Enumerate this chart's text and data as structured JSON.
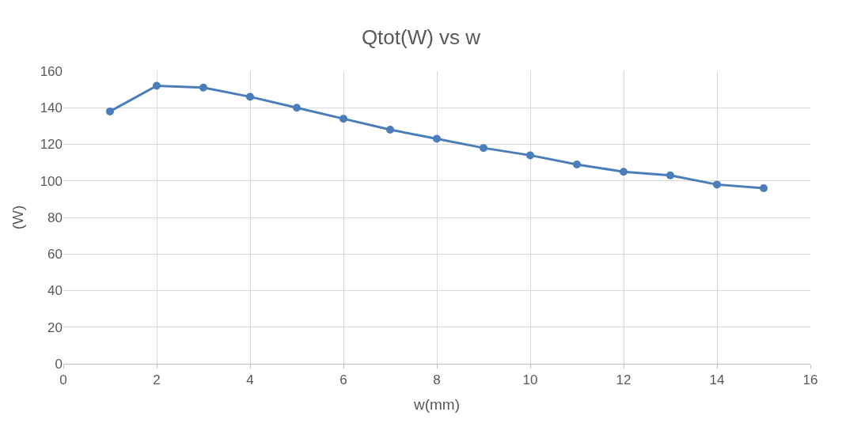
{
  "chart_data": {
    "type": "line",
    "title": "Qtot(W) vs w",
    "xlabel": "w(mm)",
    "ylabel": "(W)",
    "x": [
      1,
      2,
      3,
      4,
      5,
      6,
      7,
      8,
      9,
      10,
      11,
      12,
      13,
      14,
      15
    ],
    "series": [
      {
        "color": "#4a7ebb",
        "values": [
          138,
          152,
          151,
          146,
          140,
          134,
          128,
          123,
          118,
          114,
          109,
          105,
          103,
          98,
          96
        ]
      }
    ],
    "xlim": [
      0,
      16
    ],
    "xticks": [
      0,
      2,
      4,
      6,
      8,
      10,
      12,
      14,
      16
    ],
    "ylim": [
      0,
      160
    ],
    "yticks": [
      0,
      20,
      40,
      60,
      80,
      100,
      120,
      140,
      160
    ],
    "grid": true,
    "marker": "circle",
    "line_style": "solid"
  }
}
